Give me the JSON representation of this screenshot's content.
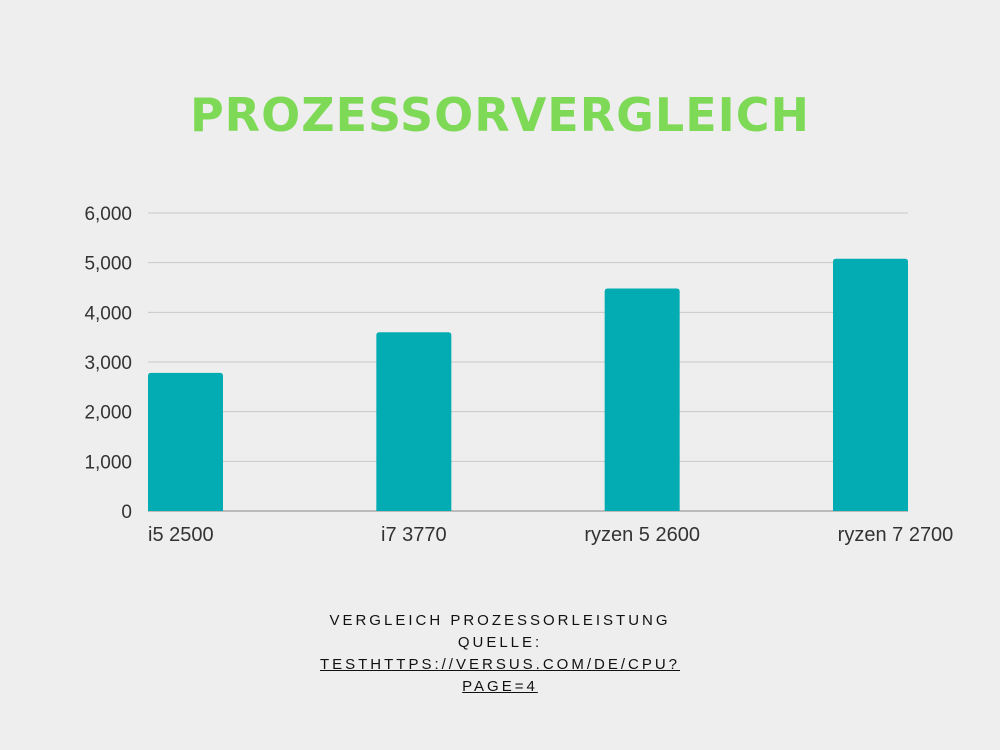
{
  "chart_data": {
    "type": "bar",
    "title": "PROZESSORVERGLEICH",
    "categories": [
      "i5 2500",
      "i7 3770",
      "ryzen 5 2600",
      "ryzen 7 2700"
    ],
    "values": [
      2780,
      3600,
      4480,
      5080
    ],
    "ylim": [
      0,
      6000
    ],
    "yticks": [
      0,
      1000,
      2000,
      3000,
      4000,
      5000,
      6000
    ],
    "ytick_labels": [
      "0",
      "1,000",
      "2,000",
      "3,000",
      "4,000",
      "5,000",
      "6,000"
    ],
    "xlabel": "",
    "ylabel": "",
    "grid": true,
    "bar_color": "#03acb3"
  },
  "caption": {
    "line1": "VERGLEICH PROZESSORLEISTUNG",
    "line2": "QUELLE:",
    "line3": " TESTHTTPS://VERSUS.COM/DE/CPU?",
    "line4": "PAGE=4"
  },
  "colors": {
    "title": "#7ed957",
    "background": "#eeeeee",
    "bar": "#03acb3"
  }
}
